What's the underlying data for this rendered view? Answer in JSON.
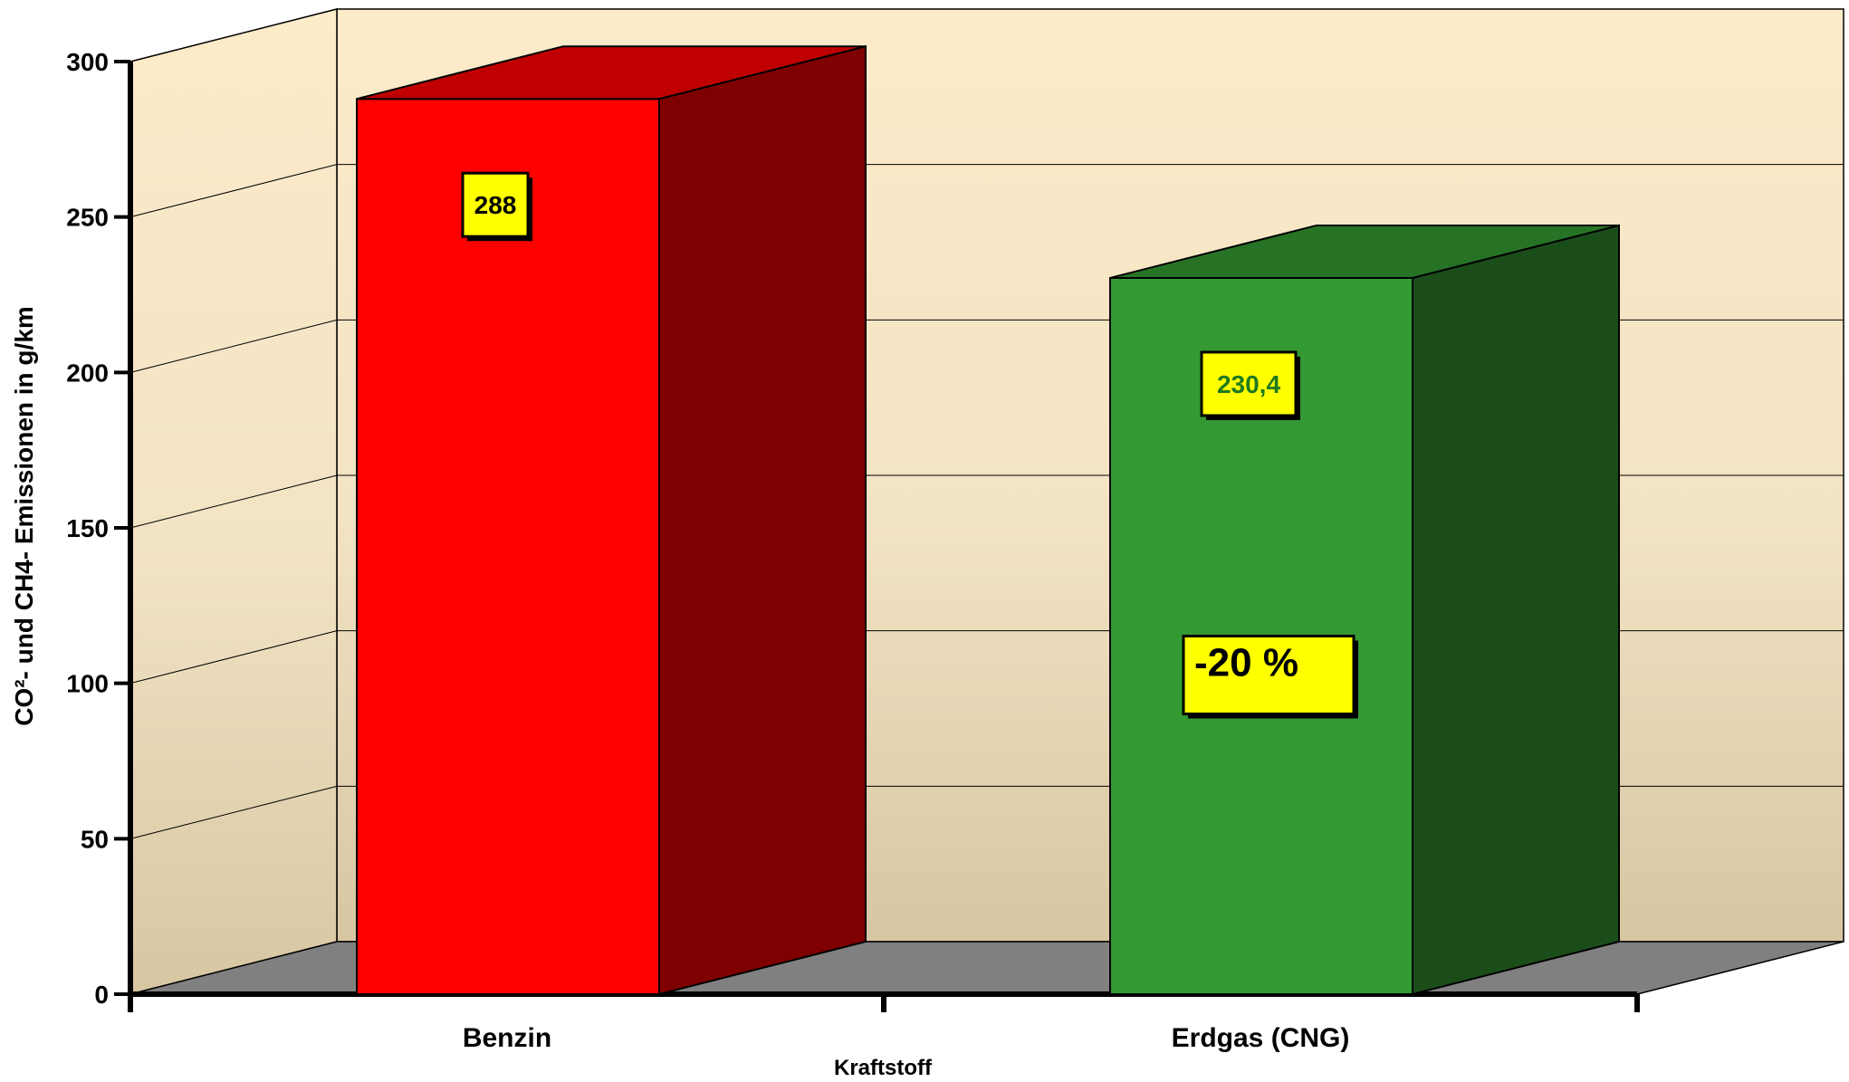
{
  "chart_data": {
    "type": "bar",
    "title": "",
    "xlabel": "Kraftstoff",
    "ylabel": "CO²- und CH4- Emissionen in g/km",
    "ylim": [
      0,
      300
    ],
    "yticks": [
      0,
      50,
      100,
      150,
      200,
      250,
      300
    ],
    "categories": [
      "Benzin",
      "Erdgas (CNG)"
    ],
    "values": [
      288,
      230.4
    ],
    "data_labels": [
      "288",
      "230,4"
    ],
    "annotations": [
      {
        "category": "Erdgas (CNG)",
        "text": "-20 %"
      }
    ],
    "style": "3d",
    "grid": true,
    "legend": "none",
    "colors": {
      "bars": [
        {
          "front": "#ff0000",
          "side": "#7f0000",
          "top": "#c00000",
          "label_text": "#000000"
        },
        {
          "front": "#339933",
          "side": "#1b4d1b",
          "top": "#267326",
          "label_text": "#1f7a1f"
        }
      ],
      "label_box": "#ffff00",
      "floor": "#808080",
      "wall_top": "#fdebc9",
      "wall_bottom": "#d7c6a2"
    }
  }
}
